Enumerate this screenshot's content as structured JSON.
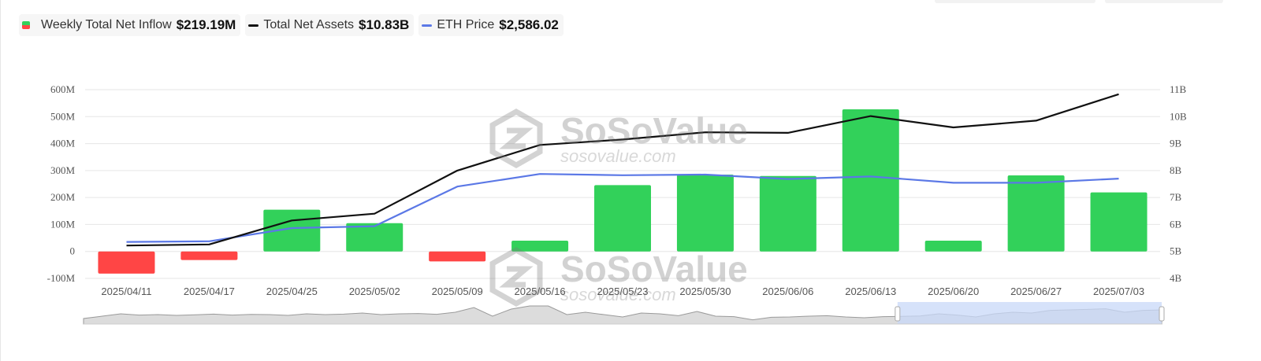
{
  "legend": {
    "inflow": {
      "label": "Weekly Total Net Inflow",
      "value": "$219.19M"
    },
    "assets": {
      "label": "Total Net Assets",
      "value": "$10.83B"
    },
    "eth": {
      "label": "ETH Price",
      "value": "$2,586.02"
    }
  },
  "watermark": {
    "brand": "SoSoValue",
    "url": "sosovalue.com"
  },
  "colors": {
    "positive": "#32d15a",
    "negative": "#ff4545",
    "assets_line": "#111111",
    "eth_line": "#5b78e6",
    "navigator_fill": "#c8d8f8"
  },
  "chart_data": {
    "type": "bar",
    "categories": [
      "2025/04/11",
      "2025/04/17",
      "2025/04/25",
      "2025/05/02",
      "2025/05/09",
      "2025/05/16",
      "2025/05/23",
      "2025/05/30",
      "2025/06/06",
      "2025/06/13",
      "2025/06/20",
      "2025/06/27",
      "2025/07/03"
    ],
    "series": [
      {
        "name": "Weekly Total Net Inflow",
        "type": "bar",
        "axis": "left",
        "values": [
          -82,
          -32,
          155,
          105,
          -37,
          40,
          246,
          285,
          280,
          527,
          40,
          282,
          219
        ]
      },
      {
        "name": "Total Net Assets",
        "type": "line",
        "axis": "right",
        "values": [
          5.22,
          5.26,
          6.15,
          6.4,
          8.0,
          8.95,
          9.15,
          9.42,
          9.4,
          10.02,
          9.6,
          9.85,
          10.83
        ]
      },
      {
        "name": "ETH Price",
        "type": "line",
        "axis": "right_scaled",
        "values": [
          1580,
          1590,
          1800,
          1830,
          2460,
          2660,
          2640,
          2650,
          2580,
          2620,
          2520,
          2520,
          2586
        ]
      }
    ],
    "left_axis": {
      "ticks": [
        "-100M",
        "0",
        "100M",
        "200M",
        "300M",
        "400M",
        "500M",
        "600M"
      ],
      "min": -100,
      "max": 600
    },
    "right_axis": {
      "ticks": [
        "4B",
        "5B",
        "6B",
        "7B",
        "8B",
        "9B",
        "10B",
        "11B"
      ],
      "min": 4,
      "max": 11
    },
    "eth_axis_range": [
      1000,
      4000
    ],
    "grid": true,
    "navigator": {
      "profile": [
        0.2,
        0.35,
        0.5,
        0.42,
        0.45,
        0.4,
        0.44,
        0.48,
        0.42,
        0.46,
        0.45,
        0.4,
        0.5,
        0.45,
        0.48,
        0.55,
        0.45,
        0.5,
        0.52,
        0.47,
        0.6,
        0.9,
        0.35,
        0.8,
        1.0,
        1.0,
        0.45,
        0.6,
        0.45,
        0.3,
        0.55,
        0.5,
        0.38,
        0.65,
        0.35,
        0.32,
        0.12,
        0.28,
        0.3,
        0.35,
        0.38,
        0.3,
        0.25,
        0.32,
        0.34,
        0.36,
        0.5,
        0.42,
        0.3,
        0.5,
        0.6,
        0.55,
        0.72,
        0.75,
        0.78,
        0.82,
        0.6,
        0.72,
        0.75
      ],
      "selected_from": 0.755,
      "selected_to": 1.0
    }
  }
}
